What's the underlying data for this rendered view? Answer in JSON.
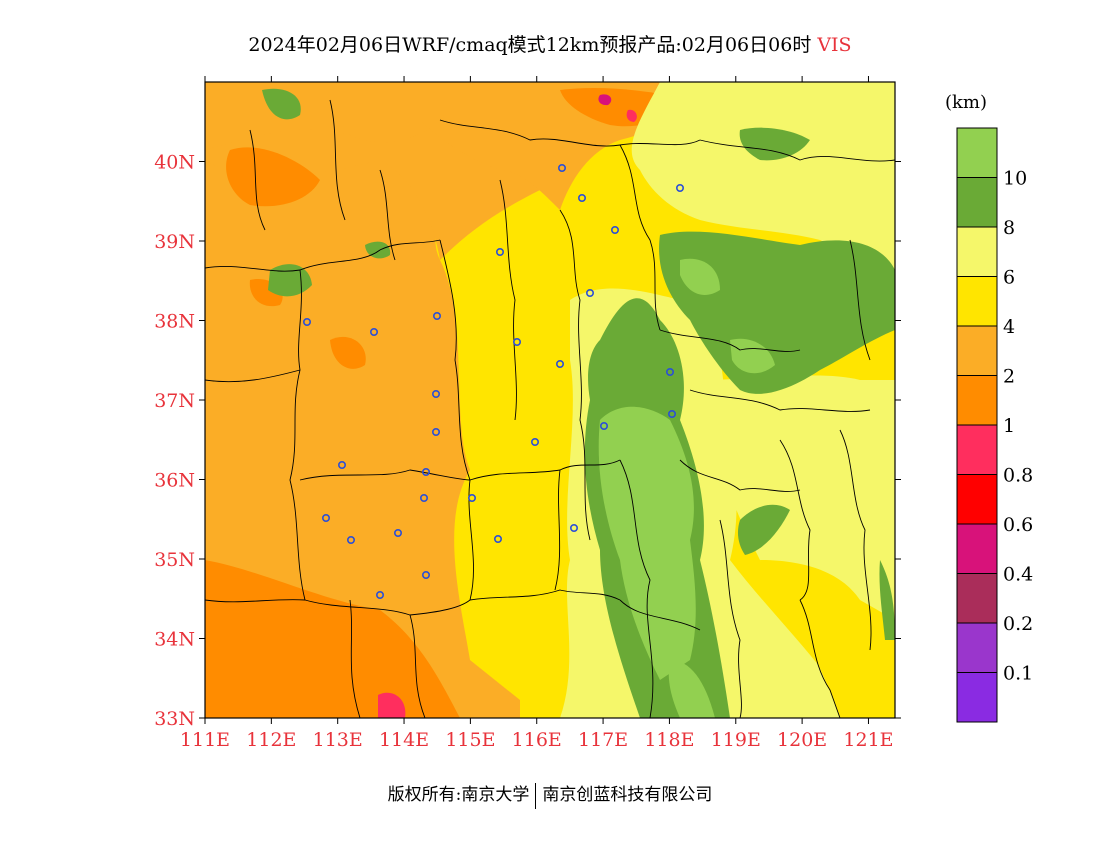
{
  "title": {
    "text": "2024年02月06日WRF/cmaq模式12km预报产品:02月06日06时",
    "variable": "VIS"
  },
  "footer": {
    "copyright": "版权所有:南京大学",
    "company": "南京创蓝科技有限公司"
  },
  "axes": {
    "x_ticks": [
      "111E",
      "112E",
      "113E",
      "114E",
      "115E",
      "116E",
      "117E",
      "118E",
      "119E",
      "120E",
      "121E"
    ],
    "y_ticks": [
      "40N",
      "39N",
      "38N",
      "37N",
      "36N",
      "35N",
      "34N",
      "33N"
    ],
    "tick_color": "#e8333b"
  },
  "legend": {
    "unit": "(km)",
    "bins": [
      {
        "color": "#92d050",
        "label": "10"
      },
      {
        "color": "#6aaa36",
        "label": "8"
      },
      {
        "color": "#f5f76a",
        "label": "6"
      },
      {
        "color": "#ffe500",
        "label": "4"
      },
      {
        "color": "#fbad26",
        "label": "2"
      },
      {
        "color": "#ff8c00",
        "label": "1"
      },
      {
        "color": "#ff2e5e",
        "label": "0.8"
      },
      {
        "color": "#ff0000",
        "label": "0.6"
      },
      {
        "color": "#d8127a",
        "label": "0.4"
      },
      {
        "color": "#aa2d5a",
        "label": "0.2"
      },
      {
        "color": "#9a36cc",
        "label": "0.1"
      },
      {
        "color": "#8a2be2",
        "label": ""
      }
    ]
  }
}
